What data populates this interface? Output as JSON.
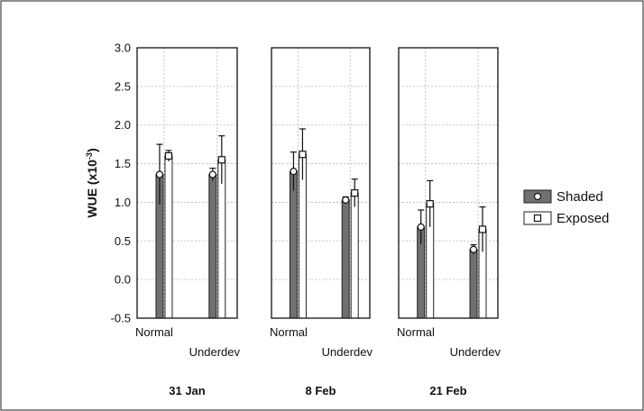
{
  "chart_data": {
    "type": "bar",
    "ylabel": "WUE (x10⁻³)",
    "ylabel_base": "WUE (x10",
    "ylabel_exp": "-3",
    "ylabel_close": ")",
    "ylim": [
      -0.5,
      3.0
    ],
    "yticks": [
      "3.0",
      "2.5",
      "2.0",
      "1.5",
      "1.0",
      "0.5",
      "0.0",
      "-0.5"
    ],
    "yticks_values": [
      3.0,
      2.5,
      2.0,
      1.5,
      1.0,
      0.5,
      0.0,
      -0.5
    ],
    "grid": true,
    "legend_position": "right",
    "series": [
      {
        "name": "Shaded",
        "color": "#707070",
        "marker": "circle"
      },
      {
        "name": "Exposed",
        "color": "#ffffff",
        "marker": "square"
      }
    ],
    "panels": [
      {
        "date": "31 Jan",
        "groups": [
          {
            "category": "Normal",
            "values": {
              "Shaded": {
                "mean": 1.36,
                "err": 0.39
              },
              "Exposed": {
                "mean": 1.6,
                "err": 0.07
              }
            }
          },
          {
            "category": "Underdev",
            "values": {
              "Shaded": {
                "mean": 1.36,
                "err": 0.08
              },
              "Exposed": {
                "mean": 1.55,
                "err": 0.31
              }
            }
          }
        ]
      },
      {
        "date": "8 Feb",
        "groups": [
          {
            "category": "Normal",
            "values": {
              "Shaded": {
                "mean": 1.4,
                "err": 0.25
              },
              "Exposed": {
                "mean": 1.62,
                "err": 0.33
              }
            }
          },
          {
            "category": "Underdev",
            "values": {
              "Shaded": {
                "mean": 1.03,
                "err": 0.04
              },
              "Exposed": {
                "mean": 1.12,
                "err": 0.18
              }
            }
          }
        ]
      },
      {
        "date": "21 Feb",
        "groups": [
          {
            "category": "Normal",
            "values": {
              "Shaded": {
                "mean": 0.68,
                "err": 0.22
              },
              "Exposed": {
                "mean": 0.98,
                "err": 0.3
              }
            }
          },
          {
            "category": "Underdev",
            "values": {
              "Shaded": {
                "mean": 0.39,
                "err": 0.06
              },
              "Exposed": {
                "mean": 0.65,
                "err": 0.29
              }
            }
          }
        ]
      }
    ]
  }
}
